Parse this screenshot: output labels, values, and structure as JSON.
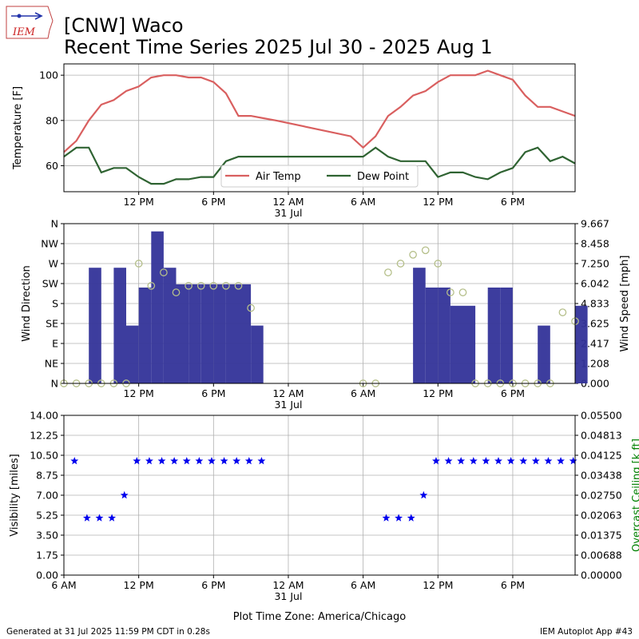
{
  "logo": {
    "text": "IEM"
  },
  "header": {
    "title_line1": "[CNW] Waco",
    "title_line2": "Recent Time Series 2025 Jul 30 - 2025 Aug 1"
  },
  "footer": {
    "generated": "Generated at 31 Jul 2025 11:59 PM CDT in 0.28s",
    "app": "IEM Autoplot App #43"
  },
  "colors": {
    "air_temp": "#d95f5f",
    "dew_point": "#2f6332",
    "wind_bar": "#333399",
    "wind_dir_marker": "#b5bf8a",
    "visibility": "#0000ee",
    "ceiling_axis": "#008000",
    "grid": "#b0b0b0"
  },
  "time_axis": {
    "start_hour": 6,
    "end_hour": 47,
    "ticks": [
      {
        "hour": 12,
        "label": "12 PM"
      },
      {
        "hour": 18,
        "label": "6 PM"
      },
      {
        "hour": 24,
        "label": "12 AM"
      },
      {
        "hour": 30,
        "label": "6 AM"
      },
      {
        "hour": 36,
        "label": "12 PM"
      },
      {
        "hour": 42,
        "label": "6 PM"
      }
    ],
    "date_label": "31 Jul",
    "bottom_ticks": [
      {
        "hour": 6,
        "label": "6 AM"
      },
      {
        "hour": 12,
        "label": "12 PM"
      },
      {
        "hour": 18,
        "label": "6 PM"
      },
      {
        "hour": 24,
        "label": "12 AM"
      },
      {
        "hour": 30,
        "label": "6 AM"
      },
      {
        "hour": 36,
        "label": "12 PM"
      },
      {
        "hour": 42,
        "label": "6 PM"
      }
    ],
    "xlabel": "Plot Time Zone: America/Chicago"
  },
  "chart_data": [
    {
      "type": "line",
      "ylabel": "Temperature [F]",
      "ylim": [
        48.5,
        105
      ],
      "yticks": [
        60,
        80,
        100
      ],
      "grid": true,
      "legend_placement": "lower center",
      "series": [
        {
          "name": "Air Temp",
          "x": [
            6,
            7,
            8,
            9,
            10,
            11,
            12,
            13,
            14,
            15,
            16,
            17,
            18,
            19,
            20,
            21,
            22,
            23,
            29,
            30,
            31,
            32,
            33,
            34,
            35,
            36,
            37,
            38,
            39,
            40,
            41,
            42,
            43,
            44,
            45,
            46,
            47
          ],
          "values": [
            66,
            71,
            80,
            87,
            89,
            93,
            95,
            99,
            100,
            100,
            99,
            99,
            97,
            92,
            82,
            82,
            81,
            80,
            73,
            68,
            73,
            82,
            86,
            91,
            93,
            97,
            100,
            100,
            100,
            102,
            100,
            98,
            91,
            86,
            86,
            84,
            82
          ]
        },
        {
          "name": "Dew Point",
          "x": [
            6,
            7,
            8,
            9,
            10,
            11,
            12,
            13,
            14,
            15,
            16,
            17,
            18,
            19,
            20,
            21,
            22,
            23,
            29,
            30,
            31,
            32,
            33,
            34,
            35,
            36,
            37,
            38,
            39,
            40,
            41,
            42,
            43,
            44,
            45,
            46,
            47
          ],
          "values": [
            64,
            68,
            68,
            57,
            59,
            59,
            55,
            52,
            52,
            54,
            54,
            55,
            55,
            62,
            64,
            64,
            64,
            64,
            64,
            64,
            68,
            64,
            62,
            62,
            62,
            55,
            57,
            57,
            55,
            54,
            57,
            59,
            66,
            68,
            62,
            64,
            61
          ]
        }
      ]
    },
    {
      "type": "bar",
      "ylabel": "Wind Direction",
      "ylabel_right": "Wind Speed [mph]",
      "direction_ticks": [
        {
          "deg": 0,
          "label": "N"
        },
        {
          "deg": 45,
          "label": "NE"
        },
        {
          "deg": 90,
          "label": "E"
        },
        {
          "deg": 135,
          "label": "SE"
        },
        {
          "deg": 180,
          "label": "S"
        },
        {
          "deg": 225,
          "label": "SW"
        },
        {
          "deg": 270,
          "label": "W"
        },
        {
          "deg": 315,
          "label": "NW"
        },
        {
          "deg": 360,
          "label": "N"
        }
      ],
      "speed_ticks": [
        "0.000",
        "1.208",
        "2.417",
        "3.625",
        "4.833",
        "6.042",
        "7.250",
        "8.458",
        "9.667"
      ],
      "speed_max": 9.667,
      "grid": true,
      "series": [
        {
          "name": "Wind Speed",
          "x": [
            8,
            10,
            11,
            12,
            13,
            14,
            15,
            16,
            17,
            18,
            19,
            20,
            21,
            34,
            35,
            36,
            37,
            38,
            40,
            41,
            42,
            43,
            44,
            45,
            46,
            47
          ],
          "values": [
            7,
            7,
            3.5,
            5.8,
            9.2,
            7,
            6,
            6,
            6,
            6,
            6,
            6,
            3.5,
            7,
            5.8,
            5.8,
            4.7,
            4.7,
            5.8,
            5.8,
            0,
            0,
            3.5,
            0,
            0,
            4.7
          ],
          "bar_width_hours": [
            1,
            1,
            1,
            1,
            1,
            1,
            1,
            1,
            1,
            1,
            1,
            1,
            1,
            1,
            1,
            1,
            1,
            1,
            1,
            1,
            1,
            1,
            1,
            1,
            1,
            1
          ]
        },
        {
          "name": "Wind Direction",
          "x": [
            6,
            7,
            8,
            9,
            10,
            11,
            12,
            13,
            14,
            15,
            16,
            17,
            18,
            19,
            20,
            21,
            30,
            31,
            32,
            33,
            34,
            35,
            36,
            37,
            38,
            39,
            40,
            41,
            42,
            43,
            44,
            45,
            46,
            47
          ],
          "values": [
            0,
            0,
            0,
            0,
            0,
            0,
            270,
            220,
            250,
            205,
            220,
            220,
            220,
            220,
            220,
            170,
            0,
            0,
            250,
            270,
            290,
            300,
            270,
            205,
            205,
            0,
            0,
            0,
            0,
            0,
            0,
            0,
            160,
            140
          ]
        }
      ]
    },
    {
      "type": "scatter",
      "ylabel": "Visibility [miles]",
      "ylabel_right": "Overcast Ceiling [k ft]",
      "yticks": [
        "0.00",
        "1.75",
        "3.50",
        "5.25",
        "7.00",
        "8.75",
        "10.50",
        "12.25",
        "14.00"
      ],
      "ylim": [
        0,
        14
      ],
      "right_ticks": [
        "0.00000",
        "0.00688",
        "0.01375",
        "0.02063",
        "0.02750",
        "0.03438",
        "0.04125",
        "0.04813",
        "0.05500"
      ],
      "right_ylim": [
        0,
        0.055
      ],
      "grid": true,
      "series": [
        {
          "name": "Visibility",
          "x": [
            6.85,
            7.85,
            8.85,
            9.85,
            10.85,
            11.85,
            12.85,
            13.85,
            14.85,
            15.85,
            16.85,
            17.85,
            18.85,
            19.85,
            20.85,
            21.85,
            31.85,
            32.85,
            33.85,
            34.85,
            35.85,
            36.85,
            37.85,
            38.85,
            39.85,
            40.85,
            41.85,
            42.85,
            43.85,
            44.85,
            45.85,
            46.85
          ],
          "values": [
            10,
            5,
            5,
            5,
            7,
            10,
            10,
            10,
            10,
            10,
            10,
            10,
            10,
            10,
            10,
            10,
            5,
            5,
            5,
            7,
            10,
            10,
            10,
            10,
            10,
            10,
            10,
            10,
            10,
            10,
            10,
            10
          ]
        }
      ]
    }
  ]
}
